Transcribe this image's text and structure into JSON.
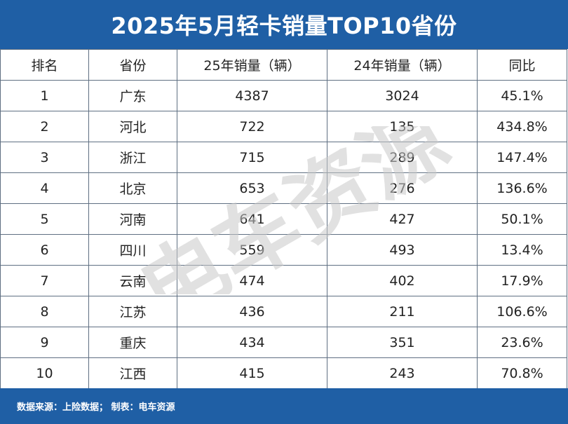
{
  "title": "2025年5月轻卡销量TOP10省份",
  "columns": [
    "排名",
    "省份",
    "25年销量（辆）",
    "24年销量（辆）",
    "同比"
  ],
  "rows": [
    [
      "1",
      "广东",
      "4387",
      "3024",
      "45.1%"
    ],
    [
      "2",
      "河北",
      "722",
      "135",
      "434.8%"
    ],
    [
      "3",
      "浙江",
      "715",
      "289",
      "147.4%"
    ],
    [
      "4",
      "北京",
      "653",
      "276",
      "136.6%"
    ],
    [
      "5",
      "河南",
      "641",
      "427",
      "50.1%"
    ],
    [
      "6",
      "四川",
      "559",
      "493",
      "13.4%"
    ],
    [
      "7",
      "云南",
      "474",
      "402",
      "17.9%"
    ],
    [
      "8",
      "江苏",
      "436",
      "211",
      "106.6%"
    ],
    [
      "9",
      "重庆",
      "434",
      "351",
      "23.6%"
    ],
    [
      "10",
      "江西",
      "415",
      "243",
      "70.8%"
    ]
  ],
  "footer": {
    "source": "数据来源：上险数据；  制表：电车资源"
  },
  "watermark": {
    "text": "电车资源"
  },
  "colors": {
    "header_bg": "#1f5fa5",
    "border": "#5f6f82",
    "watermark": "#c8c8c8"
  }
}
